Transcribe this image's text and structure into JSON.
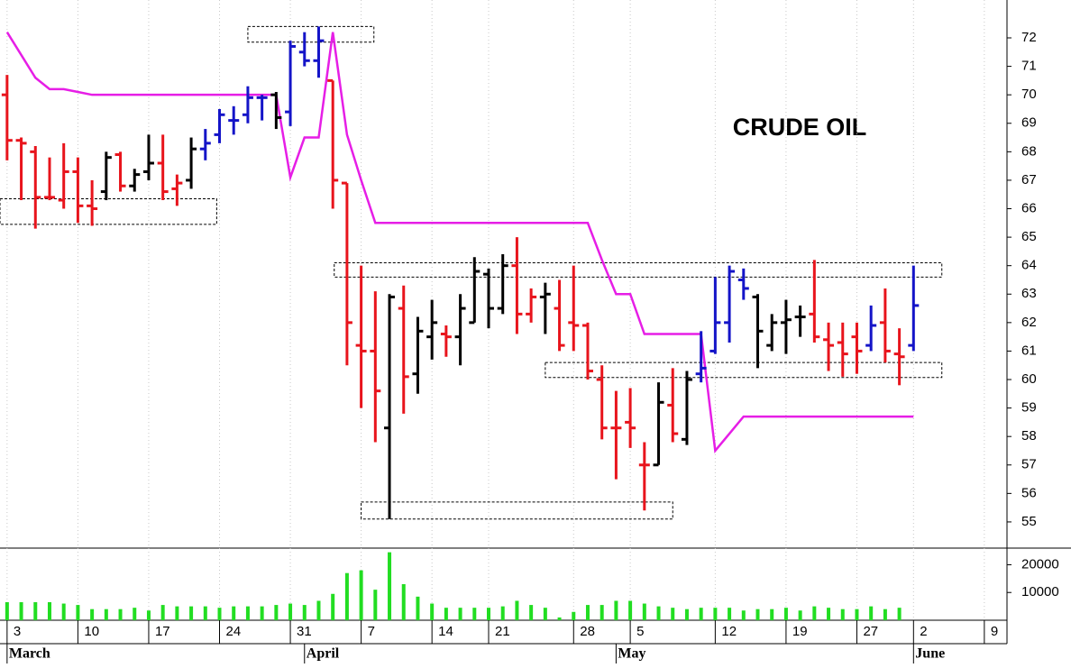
{
  "chart_data": {
    "type": "ohlc",
    "title": "CRUDE OIL",
    "categories": [
      "3",
      null,
      null,
      null,
      null,
      "10",
      null,
      null,
      null,
      null,
      "17",
      null,
      null,
      null,
      null,
      "24",
      null,
      null,
      null,
      null,
      "31",
      null,
      null,
      null,
      null,
      "7",
      null,
      null,
      null,
      null,
      "14",
      null,
      null,
      null,
      "21",
      null,
      null,
      null,
      null,
      null,
      "28",
      null,
      null,
      null,
      "5",
      null,
      null,
      null,
      null,
      null,
      "12",
      null,
      null,
      null,
      null,
      "19",
      null,
      null,
      null,
      null,
      "27",
      null,
      null,
      null,
      "2",
      null,
      null,
      null,
      null,
      "9"
    ],
    "months": [
      {
        "value": 0,
        "label": "March"
      },
      {
        "value": 21,
        "label": "April"
      },
      {
        "value": 43,
        "label": "May"
      },
      {
        "value": 64,
        "label": "June"
      }
    ],
    "xlim": [
      -0.5,
      70.6
    ],
    "ylim": [
      54.08,
      73.33
    ],
    "yticks": [
      55,
      56,
      57,
      58,
      59,
      60,
      61,
      62,
      63,
      64,
      65,
      66,
      67,
      68,
      69,
      70,
      71,
      72
    ],
    "ohlc": {
      "open": [
        70.0,
        68.4,
        68.0,
        66.4,
        66.3,
        67.3,
        66.1,
        66.6,
        67.9,
        66.8,
        67.3,
        67.6,
        66.7,
        67.0,
        68.1,
        68.6,
        69.1,
        69.3,
        69.9,
        70.0,
        69.4,
        71.5,
        71.2,
        70.5,
        66.9,
        61.2,
        61.0,
        58.3,
        62.5,
        60.2,
        61.5,
        61.6,
        61.5,
        62.0,
        63.7,
        62.5,
        64.0,
        62.3,
        62.9,
        62.5,
        62.0,
        61.9,
        60.0,
        58.3,
        58.5,
        57.0,
        57.0,
        59.1,
        57.9,
        60.2,
        61.0,
        62.0,
        63.5,
        62.9,
        61.2,
        62.0,
        62.2,
        62.3,
        61.4,
        61.3,
        61.5,
        61.2,
        62.0,
        60.9,
        61.2,
        null,
        null,
        null,
        null,
        null
      ],
      "high": [
        70.7,
        68.5,
        68.2,
        67.8,
        68.3,
        67.8,
        67.0,
        68.0,
        68.0,
        67.4,
        68.6,
        68.6,
        67.2,
        68.5,
        68.8,
        69.5,
        69.6,
        70.3,
        70.0,
        70.1,
        71.9,
        72.2,
        72.4,
        70.5,
        66.9,
        64.0,
        63.1,
        63.0,
        63.3,
        62.2,
        62.8,
        61.9,
        63.0,
        64.3,
        63.9,
        64.4,
        65.0,
        63.2,
        63.4,
        63.5,
        64.0,
        62.0,
        60.5,
        59.6,
        59.7,
        57.8,
        59.9,
        60.4,
        60.3,
        61.7,
        63.6,
        64.0,
        63.9,
        63.0,
        62.3,
        62.8,
        62.6,
        64.2,
        62.0,
        62.0,
        62.0,
        62.6,
        63.2,
        61.8,
        64.0,
        null,
        null,
        null,
        null,
        null
      ],
      "low": [
        67.7,
        66.3,
        65.3,
        66.3,
        66.0,
        65.5,
        65.4,
        66.3,
        66.6,
        66.6,
        67.0,
        66.3,
        66.1,
        66.7,
        67.7,
        68.3,
        68.6,
        69.0,
        69.1,
        68.8,
        68.9,
        71.0,
        70.6,
        66.0,
        60.5,
        59.0,
        57.8,
        55.1,
        58.8,
        59.5,
        60.7,
        60.8,
        60.5,
        62.0,
        61.8,
        62.3,
        61.6,
        62.0,
        61.6,
        61.0,
        61.0,
        60.0,
        57.9,
        56.5,
        57.6,
        55.4,
        57.0,
        57.8,
        57.7,
        59.9,
        60.9,
        61.3,
        62.8,
        60.4,
        61.0,
        60.9,
        61.5,
        61.3,
        60.3,
        60.1,
        60.2,
        61.0,
        60.6,
        59.8,
        61.0,
        null,
        null,
        null,
        null,
        null
      ],
      "close": [
        68.4,
        68.3,
        66.4,
        66.4,
        67.3,
        66.1,
        66.0,
        67.8,
        66.8,
        67.2,
        67.6,
        66.6,
        66.9,
        68.1,
        68.3,
        69.3,
        69.1,
        69.9,
        69.9,
        69.2,
        71.7,
        71.2,
        71.9,
        67.0,
        62.0,
        61.0,
        59.6,
        62.9,
        60.1,
        61.7,
        62.0,
        61.5,
        62.5,
        63.8,
        62.5,
        64.0,
        62.3,
        62.9,
        63.0,
        61.2,
        61.9,
        60.3,
        58.3,
        58.3,
        58.3,
        57.0,
        59.2,
        58.1,
        60.0,
        60.4,
        62.0,
        63.8,
        63.2,
        61.7,
        62.0,
        62.1,
        62.2,
        61.5,
        61.2,
        60.9,
        61.0,
        61.9,
        61.0,
        60.8,
        62.6,
        null,
        null,
        null,
        null,
        null
      ],
      "colors": [
        "#e8141c",
        "#e8141c",
        "#e8141c",
        "#e8141c",
        "#e8141c",
        "#e8141c",
        "#e8141c",
        "#000000",
        "#e8141c",
        "#000000",
        "#000000",
        "#e8141c",
        "#e8141c",
        "#000000",
        "#1414c8",
        "#1414c8",
        "#1414c8",
        "#1414c8",
        "#1414c8",
        "#000000",
        "#1414c8",
        "#1414c8",
        "#1414c8",
        "#e8141c",
        "#e8141c",
        "#e8141c",
        "#e8141c",
        "#000000",
        "#e8141c",
        "#000000",
        "#000000",
        "#e8141c",
        "#000000",
        "#000000",
        "#000000",
        "#000000",
        "#e8141c",
        "#e8141c",
        "#000000",
        "#e8141c",
        "#e8141c",
        "#e8141c",
        "#e8141c",
        "#e8141c",
        "#e8141c",
        "#e8141c",
        "#000000",
        "#e8141c",
        "#000000",
        "#1414c8",
        "#1414c8",
        "#1414c8",
        "#1414c8",
        "#000000",
        "#000000",
        "#000000",
        "#000000",
        "#e8141c",
        "#e8141c",
        "#e8141c",
        "#e8141c",
        "#1414c8",
        "#e8141c",
        "#e8141c",
        "#1414c8",
        null,
        null,
        null,
        null,
        null
      ]
    },
    "stop_line": {
      "color": "#e61ee6",
      "values": [
        72.2,
        71.4,
        70.6,
        70.2,
        70.2,
        70.1,
        70.0,
        70.0,
        70.0,
        70.0,
        70.0,
        70.0,
        70.0,
        70.0,
        70.0,
        70.0,
        70.0,
        70.0,
        70.0,
        70.0,
        67.1,
        68.5,
        68.5,
        72.2,
        68.6,
        67.0,
        65.5,
        65.5,
        65.5,
        65.5,
        65.5,
        65.5,
        65.5,
        65.5,
        65.5,
        65.5,
        65.5,
        65.5,
        65.5,
        65.5,
        65.5,
        65.5,
        64.2,
        63.0,
        63.0,
        61.6,
        61.6,
        61.6,
        61.6,
        61.6,
        57.5,
        58.1,
        58.7,
        58.7,
        58.7,
        58.7,
        58.7,
        58.7,
        58.7,
        58.7,
        58.7,
        58.7,
        58.7,
        58.7,
        58.7,
        null,
        null,
        null,
        null,
        null
      ]
    },
    "zones": [
      {
        "x": [
          -0.5,
          14.8
        ],
        "y": [
          65.45,
          66.35
        ]
      },
      {
        "x": [
          17.0,
          25.9
        ],
        "y": [
          71.85,
          72.4
        ]
      },
      {
        "x": [
          23.1,
          66.0
        ],
        "y": [
          63.6,
          64.1
        ]
      },
      {
        "x": [
          38.0,
          66.0
        ],
        "y": [
          60.07,
          60.6
        ]
      },
      {
        "x": [
          25.0,
          47.0
        ],
        "y": [
          55.1,
          55.7
        ]
      }
    ],
    "volume": {
      "color": "#22dd22",
      "vlim": [
        0,
        26000
      ],
      "vticks": [
        10000,
        20000
      ],
      "values": [
        6500,
        6500,
        6500,
        6500,
        6000,
        5500,
        4000,
        4000,
        4000,
        4500,
        3500,
        5500,
        5000,
        5000,
        5000,
        4500,
        5000,
        5000,
        5000,
        5500,
        6000,
        5500,
        7000,
        9500,
        17000,
        18000,
        11000,
        24500,
        13000,
        8500,
        6000,
        4500,
        4500,
        4500,
        4500,
        5000,
        7000,
        5500,
        4500,
        1000,
        3000,
        5500,
        5500,
        7000,
        7000,
        6000,
        5000,
        4500,
        4000,
        4500,
        4500,
        4500,
        3500,
        4000,
        4000,
        4500,
        3500,
        5000,
        4500,
        4000,
        4000,
        5000,
        4000,
        4500,
        null,
        null,
        null,
        null,
        null,
        null
      ]
    }
  }
}
